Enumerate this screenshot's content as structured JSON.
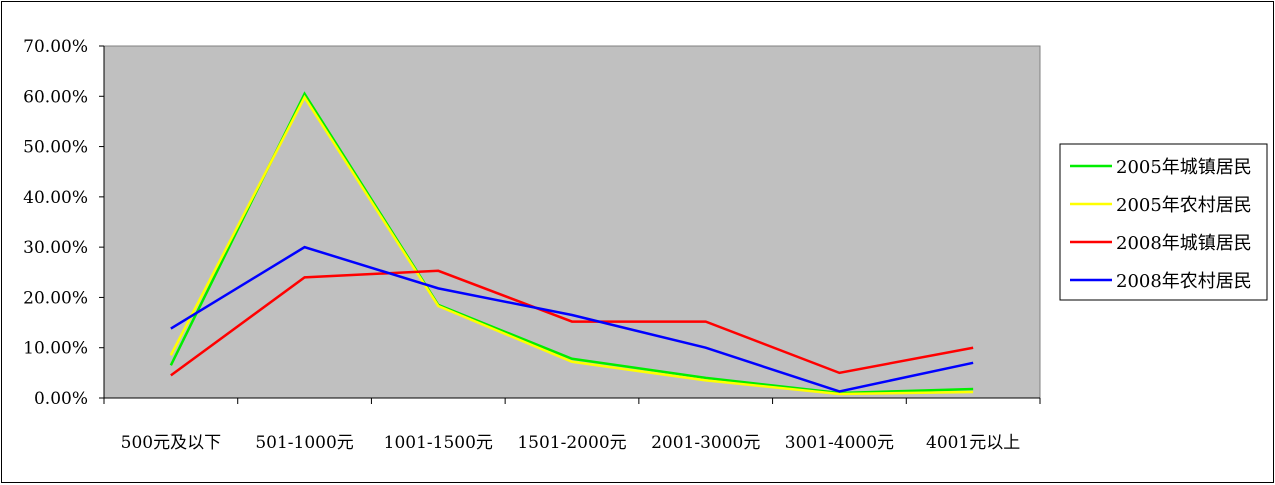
{
  "chart_data": {
    "type": "line",
    "title": "",
    "xlabel": "",
    "ylabel": "",
    "categories": [
      "500元及以下",
      "501-1000元",
      "1001-1500元",
      "1501-2000元",
      "2001-3000元",
      "3001-4000元",
      "4001元以上"
    ],
    "ylim": [
      0,
      70
    ],
    "yticks": [
      "0.00%",
      "10.00%",
      "20.00%",
      "30.00%",
      "40.00%",
      "50.00%",
      "60.00%",
      "70.00%"
    ],
    "plot_background": "#c0c0c0",
    "grid": false,
    "legend_position": "right",
    "series": [
      {
        "name": "2005年城镇居民",
        "color": "#00ee00",
        "values": [
          6.5,
          60.5,
          18.5,
          7.8,
          4.0,
          1.0,
          1.8
        ]
      },
      {
        "name": "2005年农村居民",
        "color": "#ffff00",
        "values": [
          8.5,
          59.8,
          18.3,
          7.2,
          3.5,
          0.8,
          1.2
        ]
      },
      {
        "name": "2008年城镇居民",
        "color": "#ff0000",
        "values": [
          4.5,
          24.0,
          25.3,
          15.2,
          15.2,
          5.0,
          10.0
        ]
      },
      {
        "name": "2008年农村居民",
        "color": "#0000ff",
        "values": [
          13.8,
          30.0,
          21.8,
          16.5,
          10.0,
          1.3,
          7.0
        ]
      }
    ]
  }
}
